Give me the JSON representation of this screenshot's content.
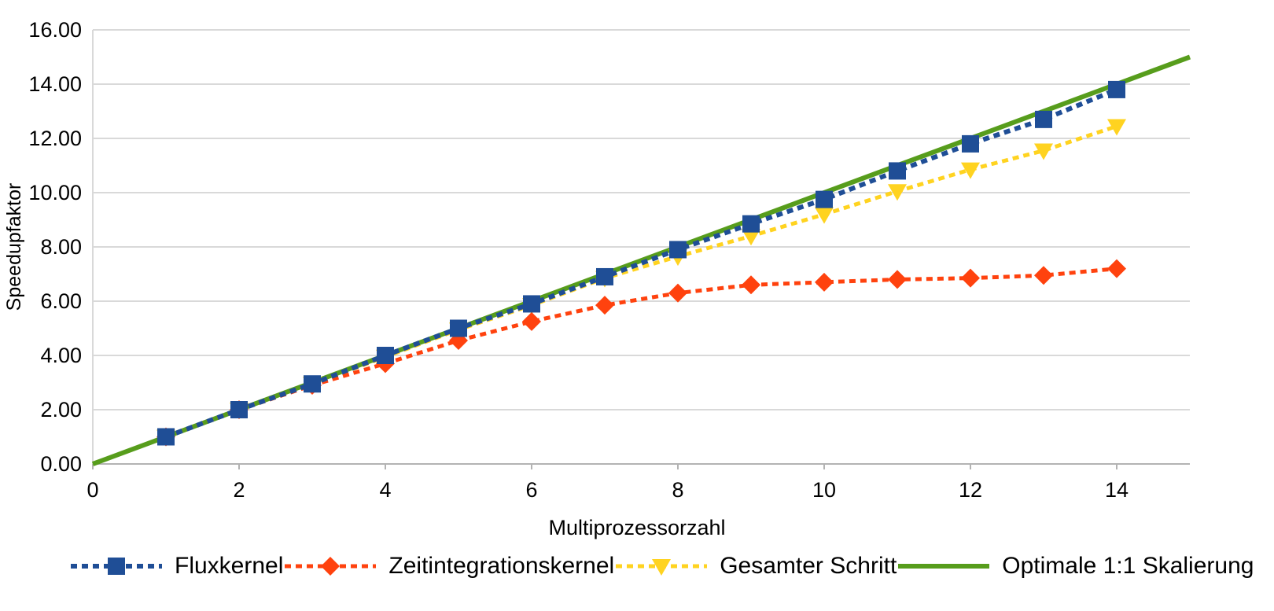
{
  "chart_data": {
    "type": "line",
    "title": "",
    "xlabel": "Multiprozessorzahl",
    "ylabel": "Speedupfaktor",
    "xlim": [
      0,
      15
    ],
    "ylim": [
      0,
      16
    ],
    "x_ticks": [
      "0",
      "2",
      "4",
      "6",
      "8",
      "10",
      "12",
      "14"
    ],
    "y_ticks": [
      "0.00",
      "2.00",
      "4.00",
      "6.00",
      "8.00",
      "10.00",
      "12.00",
      "14.00",
      "16.00"
    ],
    "grid": "horizontal-only",
    "gridline_color": "#d9d9d9",
    "axis_color": "#b3b3b3",
    "legend_position": "bottom",
    "series": [
      {
        "name": "Fluxkernel",
        "color": "#1F4E96",
        "marker": "square",
        "line_style": "dotted",
        "line_width": 6,
        "x": [
          1,
          2,
          3,
          4,
          5,
          6,
          7,
          8,
          9,
          10,
          11,
          12,
          13,
          14
        ],
        "values": [
          1.0,
          2.0,
          2.95,
          4.0,
          5.0,
          5.9,
          6.9,
          7.9,
          8.85,
          9.75,
          10.8,
          11.8,
          12.7,
          13.8
        ]
      },
      {
        "name": "Zeitintegrationskernel",
        "color": "#FF420E",
        "marker": "diamond",
        "line_style": "dotted",
        "line_width": 5,
        "x": [
          1,
          2,
          3,
          4,
          5,
          6,
          7,
          8,
          9,
          10,
          11,
          12,
          13,
          14
        ],
        "values": [
          1.0,
          2.0,
          2.9,
          3.7,
          4.55,
          5.25,
          5.85,
          6.3,
          6.6,
          6.7,
          6.8,
          6.85,
          6.95,
          7.2
        ]
      },
      {
        "name": "Gesamter Schritt",
        "color": "#FFD320",
        "marker": "triangle-down",
        "line_style": "dotted",
        "line_width": 5,
        "x": [
          1,
          2,
          3,
          4,
          5,
          6,
          7,
          8,
          9,
          10,
          11,
          12,
          13,
          14
        ],
        "values": [
          1.0,
          2.0,
          2.95,
          3.95,
          4.95,
          5.85,
          6.85,
          7.65,
          8.4,
          9.2,
          10.05,
          10.85,
          11.55,
          12.45
        ]
      },
      {
        "name": "Optimale 1:1 Skalierung",
        "color": "#579D1C",
        "marker": "none",
        "line_style": "solid",
        "line_width": 6,
        "x": [
          0,
          15
        ],
        "values": [
          0,
          15
        ]
      }
    ]
  }
}
